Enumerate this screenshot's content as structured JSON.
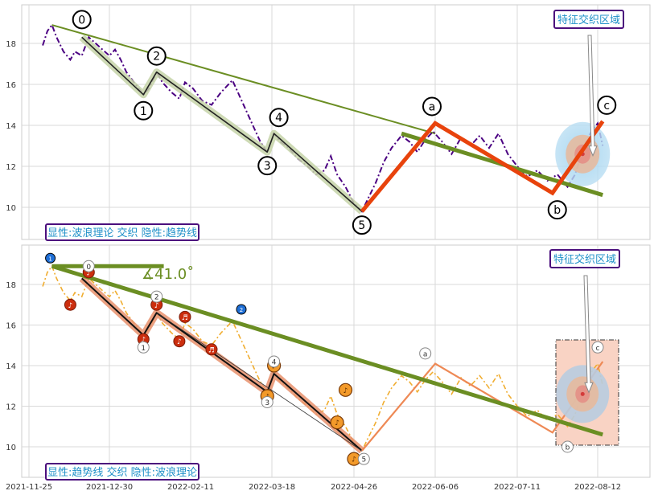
{
  "chart_data": [
    {
      "type": "line",
      "panel": "top",
      "title": "",
      "xlabel": "",
      "ylabel": "",
      "ylim": [
        8.5,
        19.8
      ],
      "yticks": [
        10,
        12,
        14,
        16,
        18
      ],
      "grid": true,
      "x_dates": [
        "2021-11-25",
        "2021-12-30",
        "2022-02-11",
        "2022-03-18",
        "2022-04-26",
        "2022-06-06",
        "2022-07-11",
        "2022-08-12"
      ],
      "legend_box": "显性:波浪理论 交织 隐性:趋势线",
      "zone_label": "特征交织区域",
      "price_series": [
        [
          "2021-12-01",
          17.9
        ],
        [
          "2021-12-03",
          18.6
        ],
        [
          "2021-12-05",
          18.9
        ],
        [
          "2021-12-07",
          18.3
        ],
        [
          "2021-12-10",
          17.6
        ],
        [
          "2021-12-13",
          17.2
        ],
        [
          "2021-12-15",
          17.6
        ],
        [
          "2021-12-18",
          17.4
        ],
        [
          "2021-12-21",
          18.3
        ],
        [
          "2021-12-24",
          18.0
        ],
        [
          "2021-12-27",
          17.7
        ],
        [
          "2021-12-30",
          17.4
        ],
        [
          "2022-01-02",
          17.7
        ],
        [
          "2022-01-05",
          17.2
        ],
        [
          "2022-01-08",
          16.6
        ],
        [
          "2022-01-12",
          16.1
        ],
        [
          "2022-01-17",
          15.5
        ],
        [
          "2022-01-20",
          15.8
        ],
        [
          "2022-01-24",
          16.6
        ],
        [
          "2022-01-27",
          16.1
        ],
        [
          "2022-02-01",
          15.6
        ],
        [
          "2022-02-05",
          15.3
        ],
        [
          "2022-02-08",
          16.1
        ],
        [
          "2022-02-12",
          15.8
        ],
        [
          "2022-02-16",
          15.2
        ],
        [
          "2022-02-20",
          15.0
        ],
        [
          "2022-02-24",
          15.6
        ],
        [
          "2022-03-01",
          16.2
        ],
        [
          "2022-03-05",
          15.2
        ],
        [
          "2022-03-09",
          14.2
        ],
        [
          "2022-03-13",
          13.2
        ],
        [
          "2022-03-16",
          12.7
        ],
        [
          "2022-03-19",
          13.6
        ],
        [
          "2022-03-22",
          13.2
        ],
        [
          "2022-03-26",
          12.9
        ],
        [
          "2022-03-30",
          12.4
        ],
        [
          "2022-04-04",
          12.0
        ],
        [
          "2022-04-08",
          11.6
        ],
        [
          "2022-04-12",
          11.8
        ],
        [
          "2022-04-15",
          12.5
        ],
        [
          "2022-04-18",
          11.6
        ],
        [
          "2022-04-22",
          11.0
        ],
        [
          "2022-04-26",
          10.2
        ],
        [
          "2022-04-30",
          9.8
        ],
        [
          "2022-05-03",
          10.4
        ],
        [
          "2022-05-07",
          11.2
        ],
        [
          "2022-05-11",
          12.2
        ],
        [
          "2022-05-15",
          12.9
        ],
        [
          "2022-05-20",
          13.5
        ],
        [
          "2022-05-24",
          13.2
        ],
        [
          "2022-05-28",
          12.7
        ],
        [
          "2022-06-01",
          13.3
        ],
        [
          "2022-06-05",
          13.7
        ],
        [
          "2022-06-09",
          13.2
        ],
        [
          "2022-06-13",
          12.6
        ],
        [
          "2022-06-17",
          13.4
        ],
        [
          "2022-06-21",
          13.0
        ],
        [
          "2022-06-25",
          13.5
        ],
        [
          "2022-06-29",
          12.9
        ],
        [
          "2022-07-03",
          13.6
        ],
        [
          "2022-07-07",
          12.6
        ],
        [
          "2022-07-11",
          12.0
        ],
        [
          "2022-07-15",
          11.5
        ],
        [
          "2022-07-19",
          11.8
        ],
        [
          "2022-07-23",
          11.3
        ],
        [
          "2022-07-27",
          11.6
        ],
        [
          "2022-07-31",
          11.0
        ],
        [
          "2022-08-03",
          11.6
        ],
        [
          "2022-08-06",
          12.8
        ],
        [
          "2022-08-09",
          13.6
        ],
        [
          "2022-08-12",
          14.1
        ],
        [
          "2022-08-14",
          13.0
        ]
      ],
      "wave_path": [
        {
          "label": "0",
          "date": "2021-12-18",
          "value": 18.3
        },
        {
          "label": "1",
          "date": "2022-01-17",
          "value": 15.5
        },
        {
          "label": "2",
          "date": "2022-01-24",
          "value": 16.6
        },
        {
          "label": "3",
          "date": "2022-03-16",
          "value": 12.7
        },
        {
          "label": "4",
          "date": "2022-03-19",
          "value": 13.6
        },
        {
          "label": "5",
          "date": "2022-04-30",
          "value": 9.8
        }
      ],
      "abc_path": [
        {
          "label": "5",
          "date": "2022-04-30",
          "value": 9.8
        },
        {
          "label": "a",
          "date": "2022-06-06",
          "value": 14.1
        },
        {
          "label": "b",
          "date": "2022-07-25",
          "value": 10.7
        },
        {
          "label": "c",
          "date": "2022-08-14",
          "value": 14.2
        }
      ],
      "trend_lines": [
        {
          "role": "thin",
          "from": [
            "2021-12-05",
            18.9
          ],
          "to": [
            "2022-06-06",
            13.6
          ]
        },
        {
          "role": "thick",
          "from": [
            "2022-05-20",
            13.6
          ],
          "to": [
            "2022-08-14",
            10.6
          ]
        }
      ],
      "zone_center": [
        "2022-08-06",
        12.6
      ]
    },
    {
      "type": "line",
      "panel": "bottom",
      "title": "",
      "xlabel": "",
      "ylabel": "",
      "ylim": [
        8.8,
        19.9
      ],
      "yticks": [
        10,
        12,
        14,
        16,
        18
      ],
      "grid": true,
      "angle_label": "∡41.0˚",
      "legend_box": "显性:趋势线 交织 隐性:波浪理论",
      "zone_label": "特征交织区域",
      "trend_touch_labels": [
        "1",
        "2"
      ],
      "music_marker": "♪",
      "music_marker_double": "♬",
      "wave_labels": [
        "0",
        "1",
        "2",
        "3",
        "4",
        "5",
        "a",
        "b",
        "c"
      ],
      "x_ticks": [
        "2021-11-25",
        "2021-12-30",
        "2022-02-11",
        "2022-03-18",
        "2022-04-26",
        "2022-06-06",
        "2022-07-11",
        "2022-08-12"
      ],
      "trend_main": {
        "from": [
          "2021-12-05",
          18.9
        ],
        "to": [
          "2022-08-14",
          10.6
        ]
      },
      "horizontal_ref": {
        "from": [
          "2021-12-05",
          18.9
        ],
        "to": [
          "2022-01-15",
          18.9
        ]
      }
    }
  ]
}
